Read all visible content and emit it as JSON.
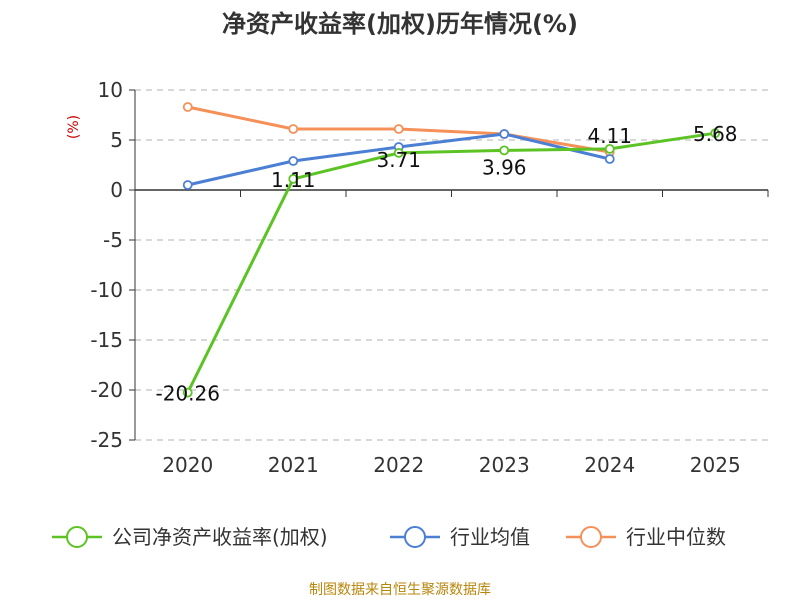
{
  "chart_data": {
    "type": "line",
    "title": "净资产收益率(加权)历年情况(%)",
    "ylabel": "(%)",
    "xlabel": "",
    "categories": [
      "2020",
      "2021",
      "2022",
      "2023",
      "2024",
      "2025"
    ],
    "ylim": [
      -25,
      10
    ],
    "yticks": [
      10,
      5,
      0,
      -5,
      -10,
      -15,
      -20,
      -25
    ],
    "grid": true,
    "legend_position": "bottom",
    "series": [
      {
        "name": "公司净资产收益率(加权)",
        "color": "#5bc424",
        "values": [
          -20.26,
          1.11,
          3.71,
          3.96,
          4.11,
          5.68
        ],
        "labels": [
          "-20.26",
          "1.11",
          "3.71",
          "3.96",
          "4.11",
          "5.68"
        ]
      },
      {
        "name": "行业均值",
        "color": "#4a7fd4",
        "values": [
          0.5,
          2.9,
          4.3,
          5.6,
          3.1,
          null
        ]
      },
      {
        "name": "行业中位数",
        "color": "#f59058",
        "values": [
          8.3,
          6.1,
          6.1,
          5.6,
          3.8,
          null
        ]
      }
    ],
    "source": "制图数据来自恒生聚源数据库"
  }
}
